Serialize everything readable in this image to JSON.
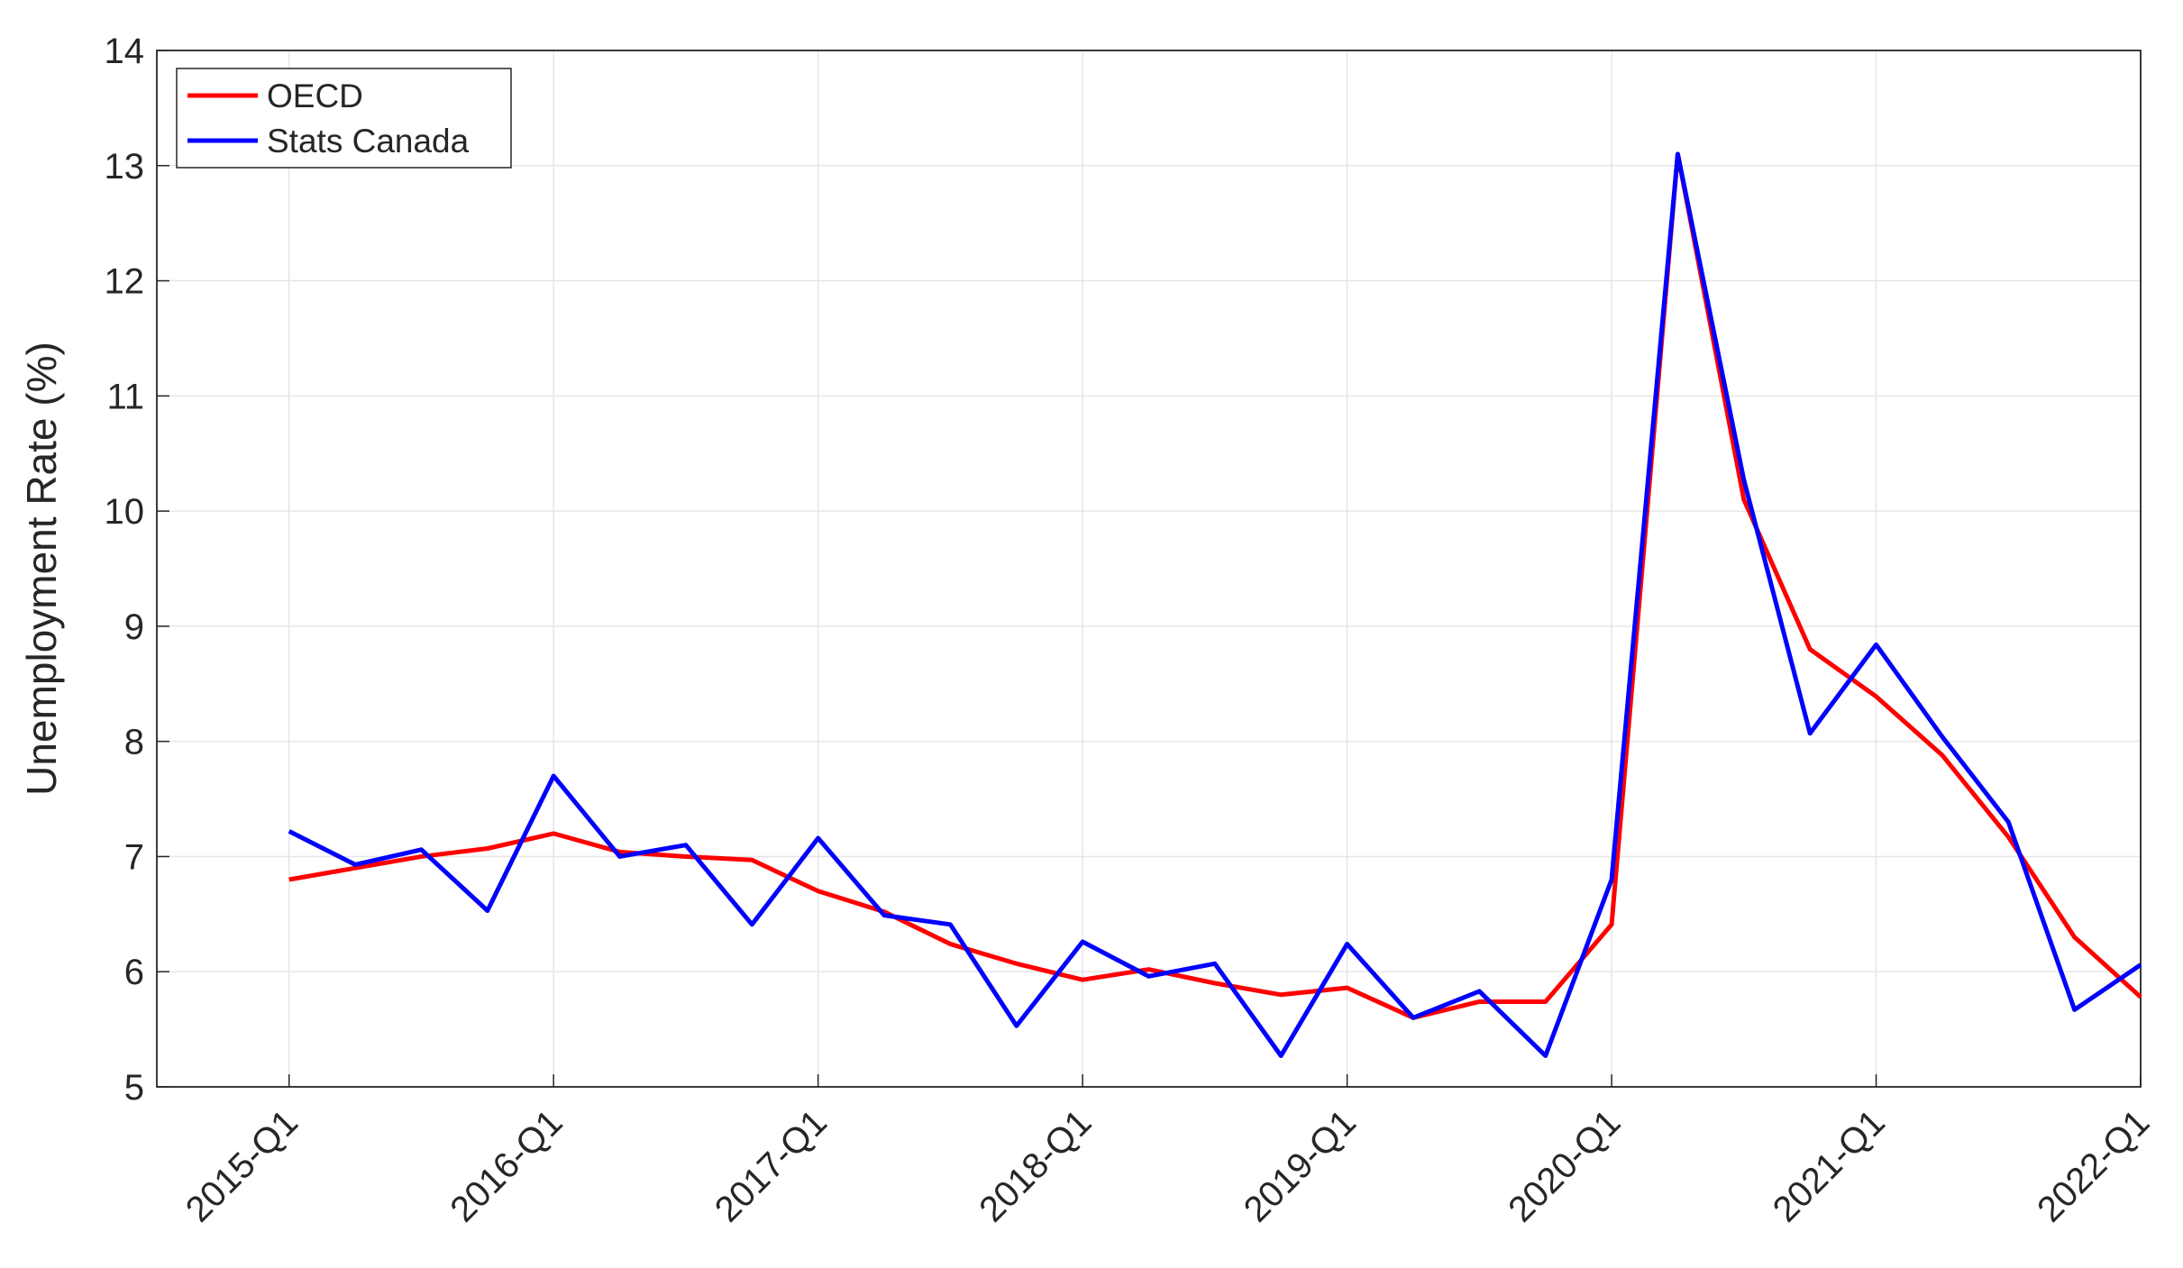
{
  "chart_data": {
    "type": "line",
    "y_label": "Unemployment Rate (%)",
    "categories": [
      "2015-Q1",
      null,
      null,
      null,
      "2016-Q1",
      null,
      null,
      null,
      "2017-Q1",
      null,
      null,
      null,
      "2018-Q1",
      null,
      null,
      null,
      "2019-Q1",
      null,
      null,
      null,
      "2020-Q1",
      null,
      null,
      null,
      "2021-Q1",
      null,
      null,
      null,
      "2022-Q1"
    ],
    "series": [
      {
        "name": "OECD",
        "color": "#ff0000",
        "values": [
          6.8,
          6.9,
          7.0,
          7.07,
          7.2,
          7.04,
          7.0,
          6.97,
          6.7,
          6.52,
          6.24,
          6.07,
          5.93,
          6.02,
          5.9,
          5.8,
          5.86,
          5.6,
          5.74,
          5.74,
          6.41,
          13.1,
          10.1,
          8.8,
          8.39,
          7.88,
          7.17,
          6.3,
          5.78
        ]
      },
      {
        "name": "Stats Canada",
        "color": "#0000ff",
        "values": [
          7.22,
          6.93,
          7.06,
          6.53,
          7.7,
          7.0,
          7.1,
          6.41,
          7.16,
          6.49,
          6.41,
          5.53,
          6.26,
          5.96,
          6.07,
          5.27,
          6.24,
          5.6,
          5.83,
          5.27,
          6.8,
          13.1,
          10.27,
          8.07,
          8.84,
          8.04,
          7.3,
          5.67,
          6.06
        ]
      }
    ],
    "ylim": [
      5,
      14
    ],
    "yticks": [
      5,
      6,
      7,
      8,
      9,
      10,
      11,
      12,
      13,
      14
    ],
    "grid": true,
    "legend": "northwest"
  }
}
